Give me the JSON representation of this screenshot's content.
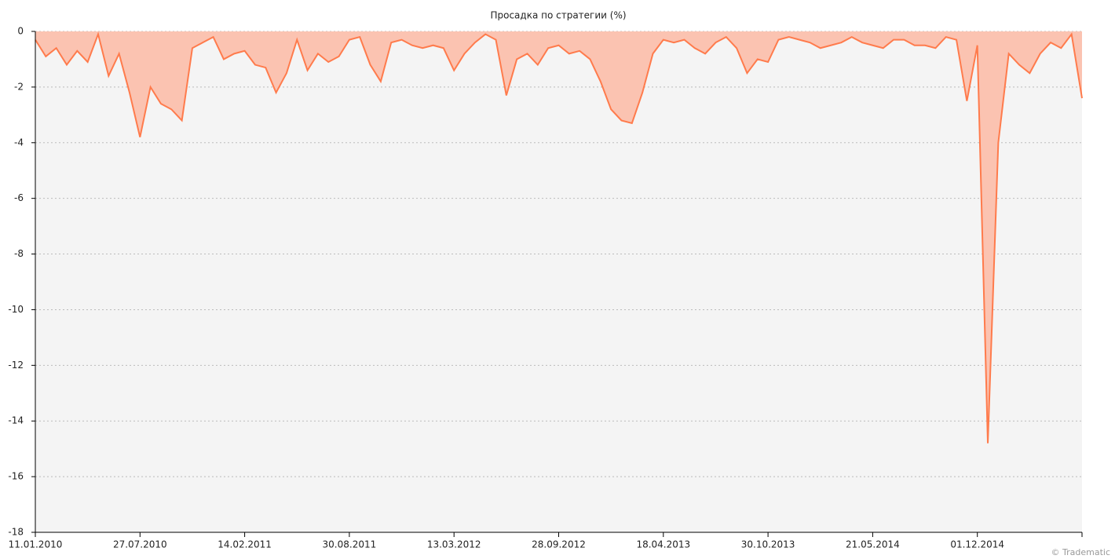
{
  "chart_data": {
    "type": "area",
    "title": "Просадка по стратегии (%)",
    "credit": "© Tradematic",
    "categories": [
      "11.01.2010",
      null,
      null,
      null,
      null,
      null,
      null,
      null,
      null,
      null,
      "27.07.2010",
      null,
      null,
      null,
      null,
      null,
      null,
      null,
      null,
      null,
      "14.02.2011",
      null,
      null,
      null,
      null,
      null,
      null,
      null,
      null,
      null,
      "30.08.2011",
      null,
      null,
      null,
      null,
      null,
      null,
      null,
      null,
      null,
      "13.03.2012",
      null,
      null,
      null,
      null,
      null,
      null,
      null,
      null,
      null,
      "28.09.2012",
      null,
      null,
      null,
      null,
      null,
      null,
      null,
      null,
      null,
      "18.04.2013",
      null,
      null,
      null,
      null,
      null,
      null,
      null,
      null,
      null,
      "30.10.2013",
      null,
      null,
      null,
      null,
      null,
      null,
      null,
      null,
      null,
      "21.05.2014",
      null,
      null,
      null,
      null,
      null,
      null,
      null,
      null,
      null,
      "01.12.2014",
      null,
      null,
      null,
      null,
      null,
      null,
      null,
      null,
      null,
      null
    ],
    "values": [
      -0.3,
      -0.9,
      -0.6,
      -1.2,
      -0.7,
      -1.1,
      -0.1,
      -1.6,
      -0.8,
      -2.2,
      -3.8,
      -2.0,
      -2.6,
      -2.8,
      -3.2,
      -0.6,
      -0.4,
      -0.2,
      -1.0,
      -0.8,
      -0.7,
      -1.2,
      -1.3,
      -2.2,
      -1.5,
      -0.3,
      -1.4,
      -0.8,
      -1.1,
      -0.9,
      -0.3,
      -0.2,
      -1.2,
      -1.8,
      -0.4,
      -0.3,
      -0.5,
      -0.6,
      -0.5,
      -0.6,
      -1.4,
      -0.8,
      -0.4,
      -0.1,
      -0.3,
      -2.3,
      -1.0,
      -0.8,
      -1.2,
      -0.6,
      -0.5,
      -0.8,
      -0.7,
      -1.0,
      -1.8,
      -2.8,
      -3.2,
      -3.3,
      -2.2,
      -0.8,
      -0.3,
      -0.4,
      -0.3,
      -0.6,
      -0.8,
      -0.4,
      -0.2,
      -0.6,
      -1.5,
      -1.0,
      -1.1,
      -0.3,
      -0.2,
      -0.3,
      -0.4,
      -0.6,
      -0.5,
      -0.4,
      -0.2,
      -0.4,
      -0.5,
      -0.6,
      -0.3,
      -0.3,
      -0.5,
      -0.5,
      -0.6,
      -0.2,
      -0.3,
      -2.5,
      -0.5,
      -14.8,
      -4.0,
      -0.8,
      -1.2,
      -1.5,
      -0.8,
      -0.4,
      -0.6,
      -0.1,
      -2.4
    ],
    "color": "#ff7b4c",
    "fill_color": "#fbc3b1",
    "ylim": [
      -18,
      0
    ],
    "yticks": [
      0,
      -2,
      -4,
      -6,
      -8,
      -10,
      -12,
      -14,
      -16,
      -18
    ],
    "grid": true
  }
}
